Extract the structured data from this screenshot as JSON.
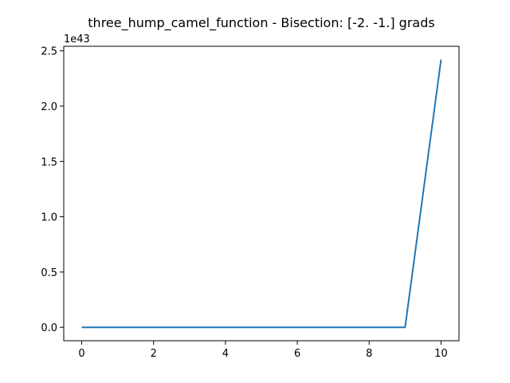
{
  "chart_data": {
    "type": "line",
    "title": "three_hump_camel_function - Bisection: [-2. -1.] grads",
    "xlabel": "",
    "ylabel": "",
    "y_offset_label": "1e43",
    "x": [
      0,
      1,
      2,
      3,
      4,
      5,
      6,
      7,
      8,
      9,
      10
    ],
    "series": [
      {
        "values": [
          0,
          0,
          0,
          0,
          0,
          0,
          0,
          0,
          0,
          0,
          2.42
        ],
        "color": "#1f77b4"
      }
    ],
    "xlim": [
      -0.5,
      10.5
    ],
    "ylim": [
      -0.121,
      2.541
    ],
    "x_ticks": [
      0,
      2,
      4,
      6,
      8,
      10
    ],
    "x_tick_labels": [
      "0",
      "2",
      "4",
      "6",
      "8",
      "10"
    ],
    "y_ticks": [
      0.0,
      0.5,
      1.0,
      1.5,
      2.0,
      2.5
    ],
    "y_tick_labels": [
      "0.0",
      "0.5",
      "1.0",
      "1.5",
      "2.0",
      "2.5"
    ],
    "grid": false,
    "legend": "none"
  }
}
